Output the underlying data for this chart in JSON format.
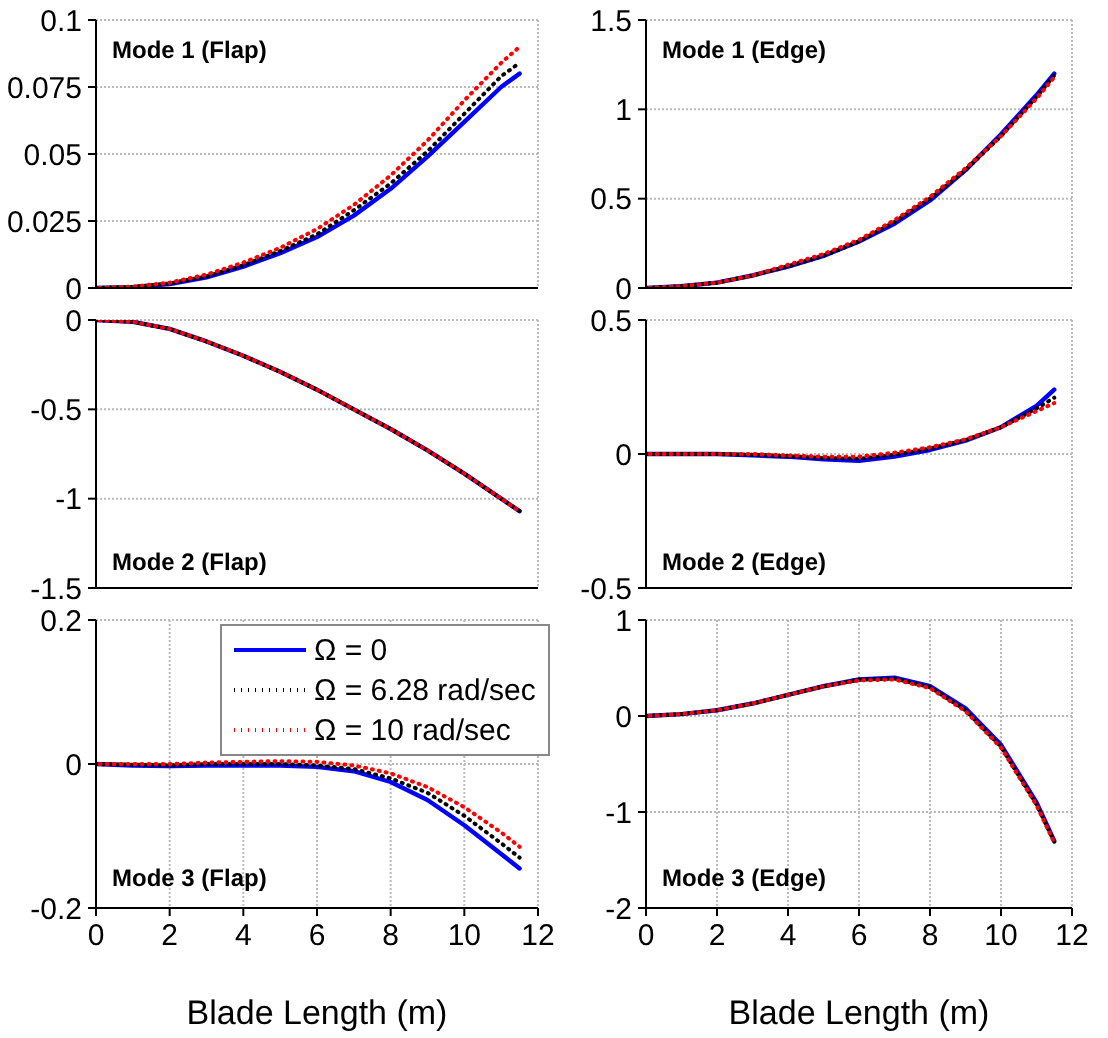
{
  "chart_data": [
    {
      "type": "line",
      "title": "Mode 1 (Flap)",
      "x": [
        0,
        1,
        2,
        3,
        4,
        5,
        6,
        7,
        8,
        9,
        10,
        11,
        11.5
      ],
      "xlim": [
        0,
        12
      ],
      "xticks": [
        0,
        2,
        4,
        6,
        8,
        10,
        12
      ],
      "ylim": [
        0,
        0.1
      ],
      "yticks": [
        0,
        0.025,
        0.05,
        0.075,
        0.1
      ],
      "grid": true,
      "legend": false,
      "tick_labels": "y",
      "series": [
        {
          "color": "#0000ff",
          "line_style": "solid",
          "values": [
            0,
            0.0003,
            0.0015,
            0.004,
            0.008,
            0.013,
            0.019,
            0.027,
            0.037,
            0.049,
            0.062,
            0.075,
            0.08
          ]
        },
        {
          "color": "#000000",
          "line_style": "dotted",
          "values": [
            0,
            0.0004,
            0.0017,
            0.0043,
            0.0085,
            0.0138,
            0.02,
            0.029,
            0.039,
            0.051,
            0.065,
            0.079,
            0.084
          ]
        },
        {
          "color": "#ff0000",
          "line_style": "dotted",
          "values": [
            0,
            0.0005,
            0.002,
            0.005,
            0.0095,
            0.015,
            0.022,
            0.031,
            0.042,
            0.055,
            0.07,
            0.084,
            0.09
          ]
        }
      ]
    },
    {
      "type": "line",
      "title": "Mode 1 (Edge)",
      "x": [
        0,
        1,
        2,
        3,
        4,
        5,
        6,
        7,
        8,
        9,
        10,
        11,
        11.5
      ],
      "xlim": [
        0,
        12
      ],
      "xticks": [
        0,
        2,
        4,
        6,
        8,
        10,
        12
      ],
      "ylim": [
        0,
        1.5
      ],
      "yticks": [
        0,
        0.5,
        1,
        1.5
      ],
      "grid": true,
      "legend": false,
      "tick_labels": "y",
      "series": [
        {
          "color": "#0000ff",
          "line_style": "solid",
          "values": [
            0,
            0.01,
            0.03,
            0.07,
            0.12,
            0.18,
            0.26,
            0.36,
            0.49,
            0.66,
            0.86,
            1.08,
            1.2
          ]
        },
        {
          "color": "#000000",
          "line_style": "dotted",
          "values": [
            0,
            0.01,
            0.03,
            0.07,
            0.12,
            0.18,
            0.26,
            0.37,
            0.5,
            0.66,
            0.85,
            1.07,
            1.19
          ]
        },
        {
          "color": "#ff0000",
          "line_style": "dotted",
          "values": [
            0,
            0.01,
            0.03,
            0.07,
            0.13,
            0.19,
            0.27,
            0.38,
            0.51,
            0.67,
            0.85,
            1.06,
            1.18
          ]
        }
      ]
    },
    {
      "type": "line",
      "title": "Mode 2 (Flap)",
      "x": [
        0,
        1,
        2,
        3,
        4,
        5,
        6,
        7,
        8,
        9,
        10,
        11,
        11.5
      ],
      "xlim": [
        0,
        12
      ],
      "xticks": [
        0,
        2,
        4,
        6,
        8,
        10,
        12
      ],
      "ylim": [
        -1.5,
        0
      ],
      "yticks": [
        -1.5,
        -1,
        -0.5,
        0
      ],
      "grid": true,
      "legend": false,
      "tick_labels": "y",
      "series": [
        {
          "color": "#0000ff",
          "line_style": "solid",
          "values": [
            0,
            -0.01,
            -0.05,
            -0.12,
            -0.2,
            -0.29,
            -0.39,
            -0.5,
            -0.61,
            -0.73,
            -0.86,
            -1,
            -1.07
          ]
        },
        {
          "color": "#000000",
          "line_style": "dotted",
          "values": [
            0,
            -0.01,
            -0.05,
            -0.12,
            -0.2,
            -0.29,
            -0.39,
            -0.5,
            -0.61,
            -0.73,
            -0.86,
            -1,
            -1.07
          ]
        },
        {
          "color": "#ff0000",
          "line_style": "dotted",
          "values": [
            0,
            -0.01,
            -0.05,
            -0.12,
            -0.2,
            -0.29,
            -0.39,
            -0.5,
            -0.61,
            -0.73,
            -0.86,
            -1,
            -1.07
          ]
        }
      ]
    },
    {
      "type": "line",
      "title": "Mode 2 (Edge)",
      "x": [
        0,
        1,
        2,
        3,
        4,
        5,
        6,
        7,
        8,
        9,
        10,
        11,
        11.5
      ],
      "xlim": [
        0,
        12
      ],
      "xticks": [
        0,
        2,
        4,
        6,
        8,
        10,
        12
      ],
      "ylim": [
        -0.5,
        0.5
      ],
      "yticks": [
        -0.5,
        0,
        0.5
      ],
      "grid": true,
      "legend": false,
      "tick_labels": "y",
      "series": [
        {
          "color": "#0000ff",
          "line_style": "solid",
          "values": [
            0,
            0,
            0,
            -0.005,
            -0.01,
            -0.02,
            -0.025,
            -0.01,
            0.015,
            0.05,
            0.1,
            0.18,
            0.24
          ]
        },
        {
          "color": "#000000",
          "line_style": "dotted",
          "values": [
            0,
            0,
            0,
            -0.003,
            -0.008,
            -0.015,
            -0.018,
            -0.003,
            0.02,
            0.052,
            0.1,
            0.17,
            0.21
          ]
        },
        {
          "color": "#ff0000",
          "line_style": "dotted",
          "values": [
            0,
            0,
            0,
            0,
            -0.005,
            -0.01,
            -0.01,
            0.005,
            0.025,
            0.055,
            0.1,
            0.16,
            0.19
          ]
        }
      ]
    },
    {
      "type": "line",
      "title": "Mode 3 (Flap)",
      "xlabel": "Blade Length (m)",
      "x": [
        0,
        1,
        2,
        3,
        4,
        5,
        6,
        7,
        8,
        9,
        10,
        11,
        11.5
      ],
      "xlim": [
        0,
        12
      ],
      "xticks": [
        0,
        2,
        4,
        6,
        8,
        10,
        12
      ],
      "ylim": [
        -0.2,
        0.2
      ],
      "yticks": [
        -0.2,
        0,
        0.2
      ],
      "grid": true,
      "legend": "top right",
      "series": [
        {
          "name": "Ω = 0",
          "color": "#0000ff",
          "line_style": "solid",
          "values": [
            0,
            -0.002,
            -0.003,
            -0.002,
            -0.002,
            -0.002,
            -0.004,
            -0.01,
            -0.025,
            -0.05,
            -0.085,
            -0.125,
            -0.145
          ]
        },
        {
          "name": "Ω = 6.28  rad/sec",
          "color": "#000000",
          "line_style": "dotted",
          "values": [
            0,
            -0.001,
            -0.002,
            0,
            0,
            0,
            -0.002,
            -0.007,
            -0.02,
            -0.04,
            -0.072,
            -0.11,
            -0.13
          ]
        },
        {
          "name": "Ω = 10  rad/sec",
          "color": "#ff0000",
          "line_style": "dotted",
          "values": [
            0,
            0,
            0,
            0.002,
            0.003,
            0.004,
            0.003,
            -0.002,
            -0.013,
            -0.032,
            -0.06,
            -0.095,
            -0.115
          ]
        }
      ]
    },
    {
      "type": "line",
      "title": "Mode 3 (Edge)",
      "xlabel": "Blade Length (m)",
      "x": [
        0,
        1,
        2,
        3,
        4,
        5,
        6,
        7,
        8,
        9,
        10,
        11,
        11.5
      ],
      "xlim": [
        0,
        12
      ],
      "xticks": [
        0,
        2,
        4,
        6,
        8,
        10,
        12
      ],
      "ylim": [
        -2,
        1
      ],
      "yticks": [
        -2,
        -1,
        0,
        1
      ],
      "grid": true,
      "legend": false,
      "series": [
        {
          "color": "#0000ff",
          "line_style": "solid",
          "values": [
            0,
            0.02,
            0.06,
            0.13,
            0.22,
            0.31,
            0.38,
            0.4,
            0.31,
            0.08,
            -0.3,
            -0.9,
            -1.3
          ]
        },
        {
          "color": "#000000",
          "line_style": "dotted",
          "values": [
            0,
            0.02,
            0.06,
            0.13,
            0.22,
            0.31,
            0.38,
            0.39,
            0.3,
            0.06,
            -0.32,
            -0.92,
            -1.31
          ]
        },
        {
          "color": "#ff0000",
          "line_style": "dotted",
          "values": [
            0,
            0.02,
            0.06,
            0.13,
            0.22,
            0.31,
            0.37,
            0.38,
            0.29,
            0.05,
            -0.33,
            -0.93,
            -1.32
          ]
        }
      ]
    }
  ]
}
